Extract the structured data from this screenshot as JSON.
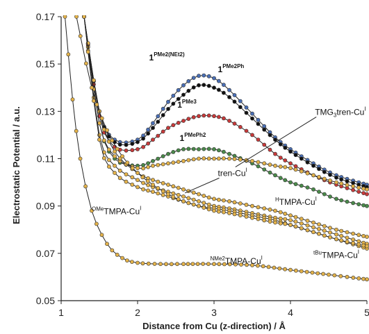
{
  "chart_data": {
    "type": "scatter",
    "xlabel": "Distance from Cu (z-direction) / Å",
    "ylabel": "Electrostatic Potential / a.u.",
    "xlim": [
      1,
      5
    ],
    "ylim": [
      0.05,
      0.17
    ],
    "xticks": [
      "1",
      "2",
      "3",
      "4",
      "5"
    ],
    "yticks": [
      "0.05",
      "0.07",
      "0.09",
      "0.11",
      "0.13",
      "0.15",
      "0.17"
    ],
    "grid": false,
    "series": [
      {
        "name": "1PMe2Ph",
        "label": {
          "base": "1",
          "sup": "PMe2Ph",
          "bold": true
        },
        "color": "#4a6fb5",
        "x": [
          1.3,
          1.5,
          1.7,
          2.0,
          2.2,
          2.4,
          2.6,
          2.8,
          3.0,
          3.2,
          3.5,
          3.8,
          4.0,
          4.3,
          4.6,
          5.0
        ],
        "y": [
          0.17,
          0.13,
          0.118,
          0.118,
          0.125,
          0.134,
          0.141,
          0.145,
          0.144,
          0.139,
          0.129,
          0.119,
          0.114,
          0.108,
          0.103,
          0.099
        ]
      },
      {
        "name": "1PMe2(NEt2)",
        "label": {
          "base": "1",
          "sup": "PMe2(NEt2)",
          "bold": true
        },
        "color": "#111111",
        "x": [
          1.3,
          1.5,
          1.7,
          2.0,
          2.2,
          2.4,
          2.6,
          2.8,
          3.0,
          3.2,
          3.5,
          3.8,
          4.0,
          4.3,
          4.6,
          5.0
        ],
        "y": [
          0.17,
          0.13,
          0.117,
          0.117,
          0.123,
          0.131,
          0.137,
          0.141,
          0.14,
          0.136,
          0.127,
          0.118,
          0.113,
          0.107,
          0.102,
          0.098
        ]
      },
      {
        "name": "1PMe3",
        "label": {
          "base": "1",
          "sup": "PMe3",
          "bold": true
        },
        "color": "#c83a3a",
        "x": [
          1.3,
          1.5,
          1.7,
          2.0,
          2.2,
          2.4,
          2.6,
          2.8,
          3.0,
          3.2,
          3.5,
          3.8,
          4.0,
          4.3,
          4.6,
          5.0
        ],
        "y": [
          0.17,
          0.128,
          0.115,
          0.114,
          0.118,
          0.123,
          0.126,
          0.128,
          0.128,
          0.126,
          0.12,
          0.112,
          0.108,
          0.103,
          0.099,
          0.095
        ]
      },
      {
        "name": "1PMePh2",
        "label": {
          "base": "1",
          "sup": "PMePh2",
          "bold": true
        },
        "color": "#4a8a4a",
        "x": [
          1.3,
          1.5,
          1.7,
          2.0,
          2.2,
          2.4,
          2.6,
          2.8,
          3.0,
          3.2,
          3.5,
          3.8,
          4.0,
          4.3,
          4.6,
          5.0
        ],
        "y": [
          0.17,
          0.125,
          0.11,
          0.107,
          0.109,
          0.112,
          0.114,
          0.114,
          0.114,
          0.112,
          0.108,
          0.103,
          0.1,
          0.097,
          0.093,
          0.09
        ]
      },
      {
        "name": "TMG3tren-CuI",
        "label": {
          "base": "TMG",
          "sub": "3",
          "rest": "tren-Cu",
          "sup": "I",
          "bold": false
        },
        "color": "#e3b24a",
        "x": [
          1.3,
          1.5,
          1.7,
          2.0,
          2.2,
          2.4,
          2.6,
          2.8,
          3.0,
          3.2,
          3.5,
          3.8,
          4.0,
          4.3,
          4.6,
          5.0
        ],
        "y": [
          0.17,
          0.125,
          0.111,
          0.106,
          0.107,
          0.108,
          0.109,
          0.11,
          0.11,
          0.11,
          0.109,
          0.107,
          0.106,
          0.103,
          0.1,
          0.097
        ]
      },
      {
        "name": "tren-CuI",
        "label": {
          "base": "tren-Cu",
          "sup": "I",
          "bold": false
        },
        "color": "#e3b24a",
        "x": [
          1.3,
          1.5,
          1.7,
          2.0,
          2.2,
          2.4,
          2.6,
          2.8,
          3.0,
          3.2,
          3.5,
          3.8,
          4.0,
          4.3,
          4.6,
          5.0
        ],
        "y": [
          0.17,
          0.13,
          0.113,
          0.104,
          0.101,
          0.099,
          0.097,
          0.095,
          0.093,
          0.092,
          0.09,
          0.088,
          0.086,
          0.083,
          0.08,
          0.077
        ]
      },
      {
        "name": "HTMPA-CuI",
        "label": {
          "pre": "H",
          "base": "TMPA-Cu",
          "sup": "I",
          "bold": false
        },
        "color": "#e3b24a",
        "x": [
          1.3,
          1.5,
          1.7,
          2.0,
          2.2,
          2.4,
          2.6,
          2.8,
          3.0,
          3.2,
          3.5,
          3.8,
          4.0,
          4.3,
          4.6,
          5.0
        ],
        "y": [
          0.17,
          0.12,
          0.107,
          0.101,
          0.098,
          0.096,
          0.094,
          0.092,
          0.09,
          0.089,
          0.087,
          0.085,
          0.084,
          0.081,
          0.078,
          0.074
        ]
      },
      {
        "name": "tBuTMPA-CuI",
        "label": {
          "pre": "tBu",
          "base": "TMPA-Cu",
          "sup": "I",
          "bold": false
        },
        "color": "#e3b24a",
        "x": [
          1.3,
          1.5,
          1.7,
          2.0,
          2.2,
          2.4,
          2.6,
          2.8,
          3.0,
          3.2,
          3.5,
          3.8,
          4.0,
          4.3,
          4.6,
          5.0
        ],
        "y": [
          0.17,
          0.118,
          0.104,
          0.098,
          0.096,
          0.094,
          0.092,
          0.09,
          0.089,
          0.088,
          0.086,
          0.084,
          0.082,
          0.079,
          0.076,
          0.072
        ]
      },
      {
        "name": "OMeTMPA-CuI",
        "label": {
          "pre": "OMe",
          "base": "TMPA-Cu",
          "sup": "I",
          "bold": false
        },
        "color": "#e3b24a",
        "x": [
          1.2,
          1.4,
          1.6,
          1.8,
          2.0,
          2.2,
          2.4,
          2.6,
          2.8,
          3.0,
          3.2,
          3.5,
          3.8,
          4.0,
          4.3,
          4.6,
          5.0
        ],
        "y": [
          0.17,
          0.14,
          0.122,
          0.111,
          0.104,
          0.099,
          0.095,
          0.092,
          0.09,
          0.088,
          0.087,
          0.085,
          0.083,
          0.082,
          0.079,
          0.076,
          0.073
        ]
      },
      {
        "name": "NMe2TMPA-CuI",
        "label": {
          "pre": "NMe2",
          "base": "TMPA-Cu",
          "sup": "I",
          "bold": false
        },
        "color": "#e3b24a",
        "x": [
          1.05,
          1.15,
          1.25,
          1.4,
          1.6,
          1.8,
          2.0,
          2.3,
          2.6,
          3.0,
          3.5,
          4.0,
          4.5,
          5.0
        ],
        "y": [
          0.17,
          0.135,
          0.11,
          0.088,
          0.074,
          0.068,
          0.066,
          0.0655,
          0.0655,
          0.0655,
          0.065,
          0.063,
          0.061,
          0.059
        ]
      }
    ],
    "annotations": [
      {
        "series": "TMG3tren-CuI",
        "x": 4.32,
        "y": 0.1285,
        "anchor": "start",
        "leader_to": [
          3.28,
          0.1065
        ]
      },
      {
        "series": "1PMe2(NEt2)",
        "x": 2.15,
        "y": 0.1515,
        "anchor": "start"
      },
      {
        "series": "1PMe2Ph",
        "x": 3.05,
        "y": 0.1465,
        "anchor": "start"
      },
      {
        "series": "1PMe3",
        "x": 2.52,
        "y": 0.1315,
        "anchor": "start"
      },
      {
        "series": "1PMePh2",
        "x": 2.55,
        "y": 0.1175,
        "anchor": "start"
      },
      {
        "series": "tren-CuI",
        "x": 3.05,
        "y": 0.1027,
        "anchor": "start",
        "leader_to": [
          2.62,
          0.0955
        ]
      },
      {
        "series": "HTMPA-CuI",
        "x": 3.8,
        "y": 0.0905,
        "anchor": "start"
      },
      {
        "series": "OMeTMPA-CuI",
        "x": 1.4,
        "y": 0.0865,
        "anchor": "start"
      },
      {
        "series": "tBuTMPA-CuI",
        "x": 4.3,
        "y": 0.068,
        "anchor": "start"
      },
      {
        "series": "NMe2TMPA-CuI",
        "x": 2.95,
        "y": 0.0655,
        "anchor": "start"
      }
    ]
  }
}
